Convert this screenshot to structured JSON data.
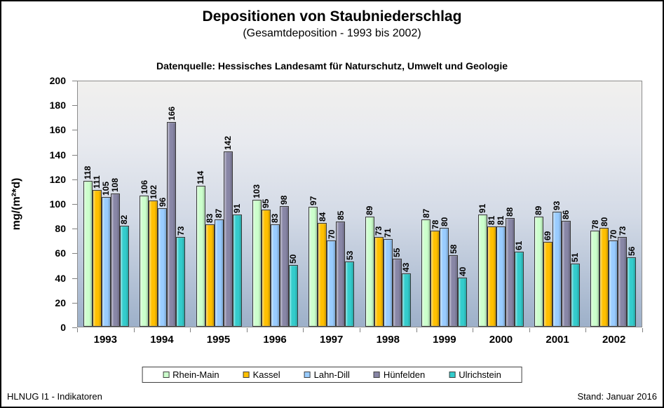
{
  "header": {
    "title": "Depositionen von Staubniederschlag",
    "subtitle": "(Gesamtdeposition - 1993 bis 2002)",
    "source": "Datenquelle: Hessisches Landesamt für Naturschutz, Umwelt und Geologie"
  },
  "footer": {
    "left": "HLNUG I1 - Indikatoren",
    "right": "Stand: Januar 2016"
  },
  "chart_data": {
    "type": "bar",
    "title": "Depositionen von Staubniederschlag",
    "subtitle": "(Gesamtdeposition - 1993 bis 2002)",
    "ylabel": "mg/(m²*d)",
    "xlabel": "",
    "ylim": [
      0,
      200
    ],
    "ytick_step": 20,
    "grid": false,
    "legend_position": "bottom",
    "categories": [
      "1993",
      "1994",
      "1995",
      "1996",
      "1997",
      "1998",
      "1999",
      "2000",
      "2001",
      "2002"
    ],
    "series": [
      {
        "name": "Rhein-Main",
        "color": "#CCFFCC",
        "values": [
          118,
          106,
          114,
          103,
          97,
          89,
          87,
          91,
          89,
          78
        ]
      },
      {
        "name": "Kassel",
        "color": "#FFC000",
        "values": [
          111,
          102,
          83,
          95,
          84,
          73,
          78,
          81,
          69,
          80
        ]
      },
      {
        "name": "Lahn-Dill",
        "color": "#99CCFF",
        "values": [
          105,
          96,
          87,
          83,
          70,
          71,
          80,
          81,
          93,
          70
        ]
      },
      {
        "name": "Hünfelden",
        "color": "#8886A6",
        "values": [
          108,
          166,
          142,
          98,
          85,
          55,
          58,
          88,
          86,
          73
        ]
      },
      {
        "name": "Ulrichstein",
        "color": "#33CCCC",
        "values": [
          82,
          73,
          91,
          50,
          53,
          43,
          40,
          61,
          51,
          56
        ]
      }
    ]
  }
}
